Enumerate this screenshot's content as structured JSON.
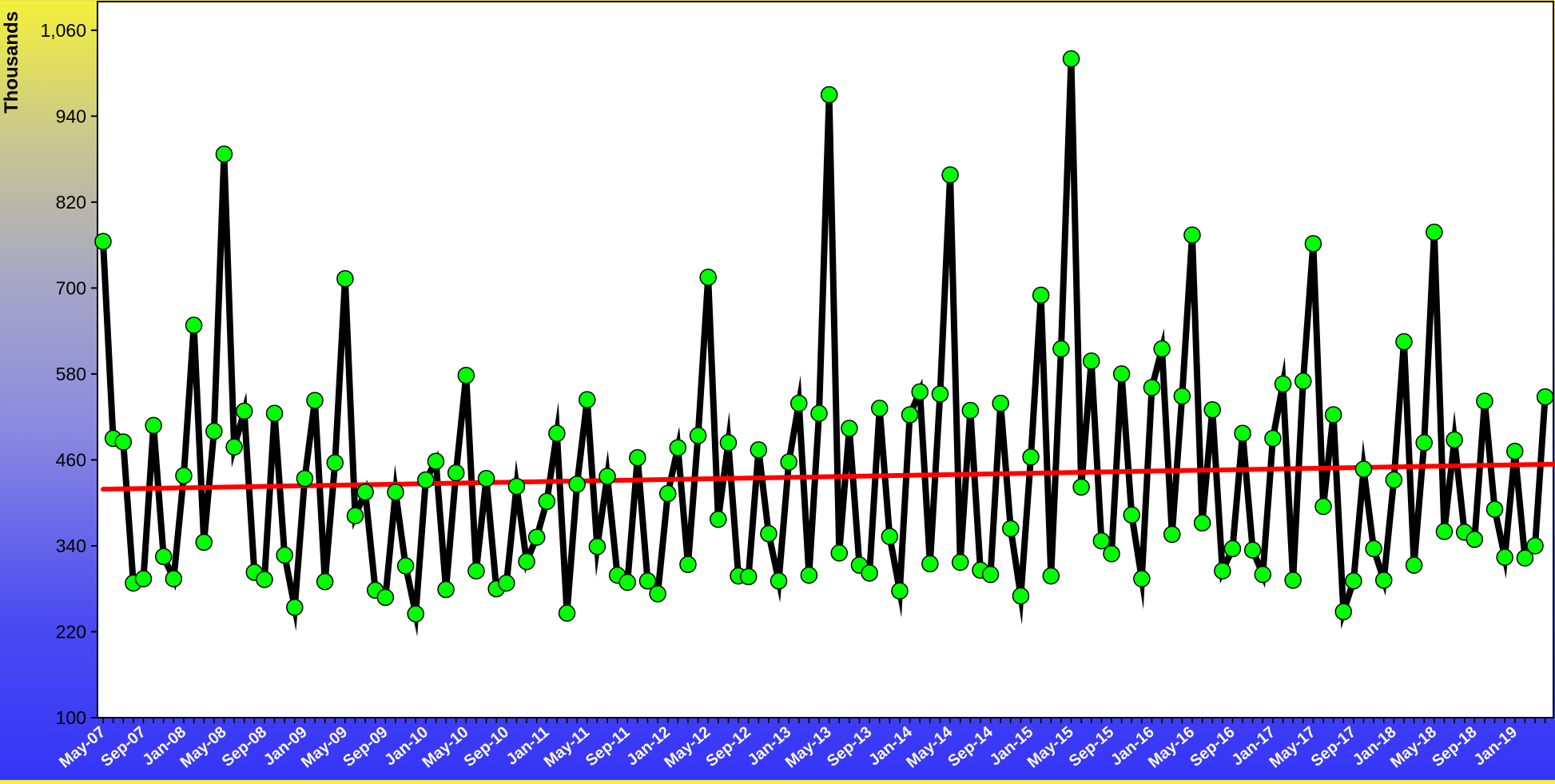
{
  "chart_data": {
    "type": "line",
    "ylabel": "Thousands",
    "xlabel": "",
    "ylim": [
      100,
      1100
    ],
    "yticks": [
      100,
      220,
      340,
      460,
      580,
      700,
      820,
      940,
      1060
    ],
    "ytick_labels": [
      "100",
      "220",
      "340",
      "460",
      "580",
      "700",
      "820",
      "940",
      "1,060"
    ],
    "x_start": "May-07",
    "xtick_labels": [
      "May-07",
      "Sep-07",
      "Jan-08",
      "May-08",
      "Sep-08",
      "Jan-09",
      "May-09",
      "Sep-09",
      "Jan-10",
      "May-10",
      "Sep-10",
      "Jan-11",
      "May-11",
      "Sep-11",
      "Jan-12",
      "May-12",
      "Sep-12",
      "Jan-13",
      "May-13",
      "Sep-13",
      "Jan-14",
      "May-14",
      "Sep-14",
      "Jan-15",
      "May-15",
      "Sep-15",
      "Jan-16",
      "May-16",
      "Sep-16",
      "Jan-17",
      "May-17",
      "Sep-17",
      "Jan-18",
      "May-18",
      "Sep-18",
      "Jan-19"
    ],
    "series": [
      {
        "values": [
          765,
          490,
          485,
          288,
          294,
          508,
          325,
          294,
          438,
          648,
          345,
          500,
          887,
          478,
          528,
          303,
          293,
          525,
          327,
          254,
          434,
          543,
          290,
          456,
          713,
          382,
          415,
          278,
          268,
          415,
          312,
          245,
          432,
          458,
          279,
          442,
          578,
          305,
          434,
          280,
          288,
          423,
          318,
          352,
          402,
          497,
          246,
          426,
          544,
          339,
          437,
          299,
          289,
          463,
          291,
          273,
          413,
          477,
          314,
          494,
          715,
          377,
          484,
          298,
          297,
          474,
          357,
          291,
          457,
          539,
          299,
          525,
          970,
          330,
          504,
          313,
          302,
          532,
          353,
          277,
          523,
          555,
          315,
          552,
          858,
          317,
          529,
          306,
          300,
          539,
          364,
          270,
          464,
          690,
          298,
          615,
          1020,
          422,
          598,
          347,
          329,
          580,
          383,
          294,
          561,
          615,
          356,
          549,
          774,
          372,
          530,
          305,
          336,
          497,
          334,
          300,
          490,
          566,
          292,
          570,
          762,
          395,
          523,
          248,
          291,
          447,
          336,
          292,
          432,
          625,
          313,
          484,
          778,
          360,
          488,
          359,
          349,
          542,
          391,
          324,
          472,
          323,
          340,
          548
        ]
      }
    ],
    "trendline": {
      "start": 419,
      "end": 454
    },
    "colors": {
      "line": "#000000",
      "marker_fill": "#00ff00",
      "marker_stroke": "#000000",
      "trendline": "#ff0000",
      "plot_background": "#ffffff"
    },
    "grid": false,
    "legend": "none"
  }
}
